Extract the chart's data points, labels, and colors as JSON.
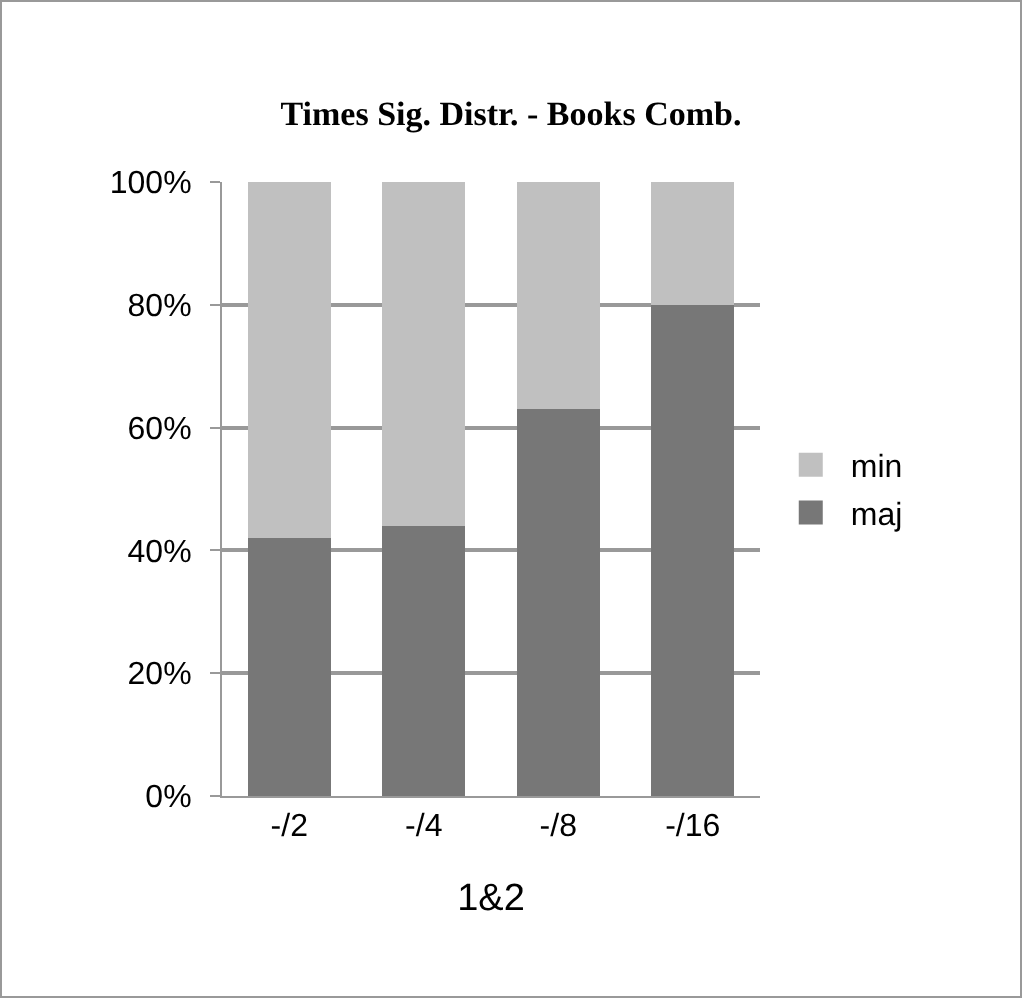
{
  "chart_data": {
    "type": "bar",
    "title": "Times Sig. Distr. - Books Comb.",
    "xlabel": "1&2",
    "categories": [
      "-/2",
      "-/4",
      "-/8",
      "-/16"
    ],
    "stacked": true,
    "series": [
      {
        "name": "maj",
        "color": "#777777",
        "values": [
          42,
          44,
          63,
          80
        ]
      },
      {
        "name": "min",
        "color": "#c0c0c0",
        "values": [
          58,
          56,
          37,
          20
        ]
      }
    ],
    "ylim": [
      0,
      100
    ],
    "yticks": [
      {
        "value": 0,
        "label": "0%"
      },
      {
        "value": 20,
        "label": "20%"
      },
      {
        "value": 40,
        "label": "40%"
      },
      {
        "value": 60,
        "label": "60%"
      },
      {
        "value": 80,
        "label": "80%"
      },
      {
        "value": 100,
        "label": "100%"
      }
    ],
    "grid": "y",
    "legend": "right"
  }
}
